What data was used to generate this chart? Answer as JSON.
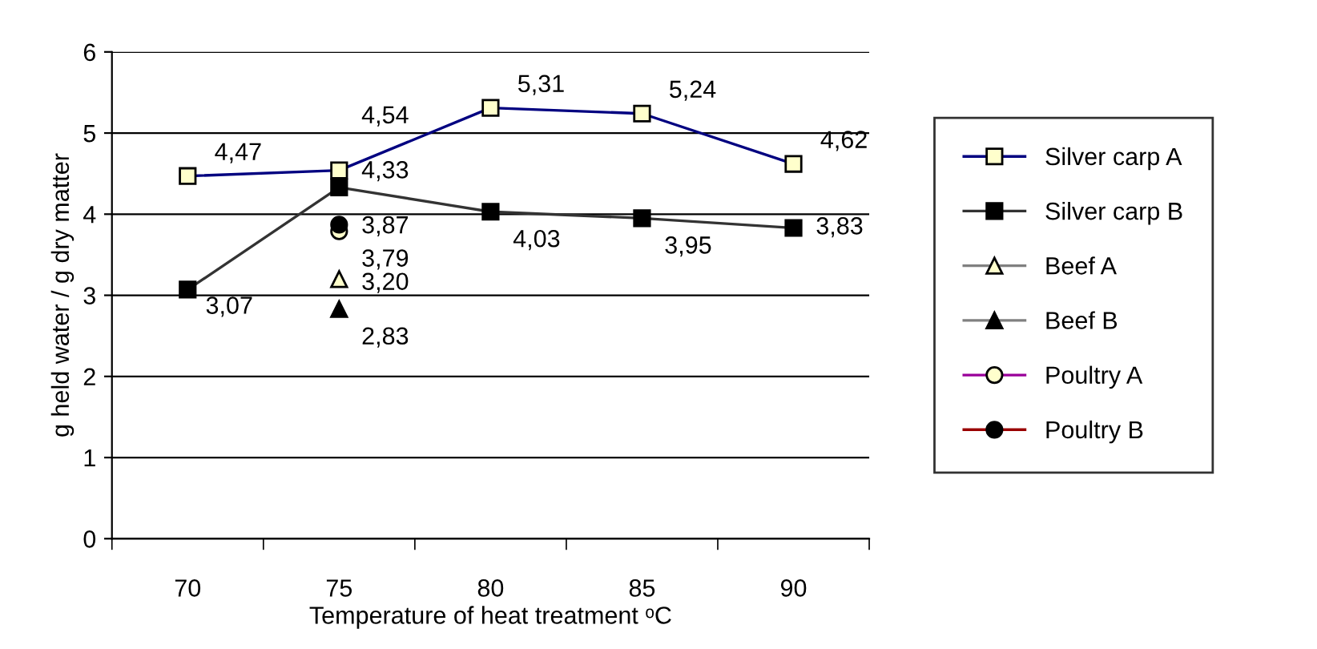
{
  "chart_data": {
    "type": "line",
    "xlabel": "Temperature of heat treatment ᵒC",
    "ylabel": "g held water / g dry matter",
    "categories": [
      "70",
      "75",
      "80",
      "85",
      "90"
    ],
    "ylim": [
      0,
      6
    ],
    "yticks": [
      0,
      1,
      2,
      3,
      4,
      5,
      6
    ],
    "grid": "y",
    "legend": "right",
    "series": [
      {
        "name": "Silver carp A",
        "color": "#000080",
        "marker": "square",
        "colors": [
          "#ffffcc",
          "#ffffcc",
          "#ffffcc",
          "#ffffcc",
          "#ffffcc"
        ],
        "values": [
          4.47,
          4.54,
          5.31,
          5.24,
          4.62
        ],
        "value_labels": [
          "4,47",
          "4,54",
          "5,31",
          "5,24",
          "4,62"
        ]
      },
      {
        "name": "Silver carp B",
        "color": "#333333",
        "marker": "square",
        "colors": [
          "#000000",
          "#000000",
          "#000000",
          "#000000",
          "#000000"
        ],
        "values": [
          3.07,
          4.33,
          4.03,
          3.95,
          3.83
        ],
        "value_labels": [
          "3,07",
          "4,33",
          "4,03",
          "3,95",
          "3,83"
        ]
      },
      {
        "name": "Beef A",
        "color": "#808080",
        "marker": "triangle",
        "colors": [
          null,
          "#ffffcc",
          null,
          null,
          null
        ],
        "values": [
          null,
          3.2,
          null,
          null,
          null
        ],
        "value_labels": [
          null,
          "3,20",
          null,
          null,
          null
        ]
      },
      {
        "name": "Beef B",
        "color": "#808080",
        "marker": "triangle",
        "colors": [
          null,
          "#000000",
          null,
          null,
          null
        ],
        "values": [
          null,
          2.83,
          null,
          null,
          null
        ],
        "value_labels": [
          null,
          "2,83",
          null,
          null,
          null
        ]
      },
      {
        "name": "Poultry A",
        "color": "#990099",
        "marker": "circle",
        "colors": [
          null,
          "#ffffcc",
          null,
          null,
          null
        ],
        "values": [
          null,
          3.79,
          null,
          null,
          null
        ],
        "value_labels": [
          null,
          "3,79",
          null,
          null,
          null
        ]
      },
      {
        "name": "Poultry B",
        "color": "#990000",
        "marker": "circle",
        "colors": [
          null,
          "#000000",
          null,
          null,
          null
        ],
        "values": [
          null,
          3.87,
          null,
          null,
          null
        ],
        "value_labels": [
          null,
          "3,87",
          null,
          null,
          null
        ]
      }
    ]
  }
}
